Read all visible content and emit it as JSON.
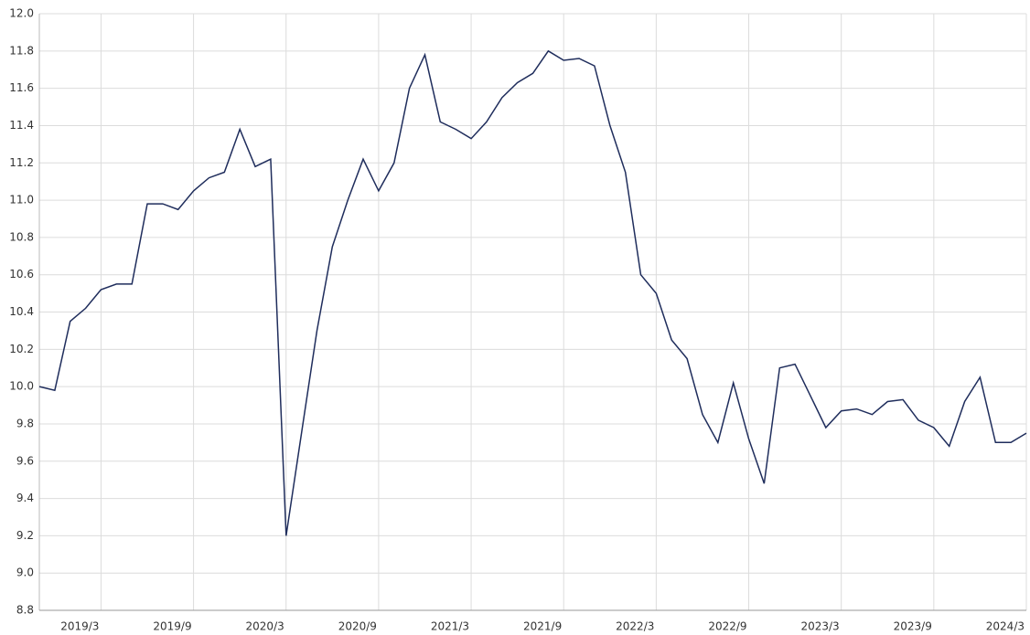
{
  "chart_data": {
    "type": "line",
    "x": [
      "2018/11",
      "2018/12",
      "2019/1",
      "2019/2",
      "2019/3",
      "2019/4",
      "2019/5",
      "2019/6",
      "2019/7",
      "2019/8",
      "2019/9",
      "2019/10",
      "2019/11",
      "2019/12",
      "2020/1",
      "2020/2",
      "2020/3",
      "2020/4",
      "2020/5",
      "2020/6",
      "2020/7",
      "2020/8",
      "2020/9",
      "2020/10",
      "2020/11",
      "2020/12",
      "2021/1",
      "2021/2",
      "2021/3",
      "2021/4",
      "2021/5",
      "2021/6",
      "2021/7",
      "2021/8",
      "2021/9",
      "2021/10",
      "2021/11",
      "2021/12",
      "2022/1",
      "2022/2",
      "2022/3",
      "2022/4",
      "2022/5",
      "2022/6",
      "2022/7",
      "2022/8",
      "2022/9",
      "2022/10",
      "2022/11",
      "2022/12",
      "2023/1",
      "2023/2",
      "2023/3",
      "2023/4",
      "2023/5",
      "2023/6",
      "2023/7",
      "2023/8",
      "2023/9",
      "2023/10",
      "2023/11",
      "2023/12",
      "2024/1",
      "2024/2",
      "2024/3"
    ],
    "series": [
      {
        "color": "#1f2d5c",
        "values": [
          10.0,
          9.98,
          10.35,
          10.42,
          10.52,
          10.55,
          10.55,
          10.98,
          10.98,
          10.95,
          11.05,
          11.12,
          11.15,
          11.38,
          11.18,
          11.22,
          9.2,
          9.75,
          10.3,
          10.75,
          11.0,
          11.22,
          11.05,
          11.2,
          11.6,
          11.78,
          11.42,
          11.38,
          11.33,
          11.42,
          11.55,
          11.63,
          11.68,
          11.8,
          11.75,
          11.76,
          11.72,
          11.4,
          11.15,
          10.6,
          10.5,
          10.25,
          10.15,
          9.85,
          9.7,
          10.02,
          9.72,
          9.48,
          10.1,
          10.12,
          9.95,
          9.78,
          9.87,
          9.88,
          9.85,
          9.92,
          9.93,
          9.82,
          9.78,
          9.68,
          9.92,
          10.05,
          9.7,
          9.7,
          9.75
        ]
      }
    ],
    "xticks": [
      "2019/3",
      "2019/9",
      "2020/3",
      "2020/9",
      "2021/3",
      "2021/9",
      "2022/3",
      "2022/9",
      "2023/3",
      "2023/9",
      "2024/3"
    ],
    "ylim": [
      8.8,
      12.0
    ],
    "yticks": [
      8.8,
      {
        "value": 9,
        "label": "9.0"
      },
      9.2,
      9.4,
      9.6,
      9.8,
      {
        "value": 10,
        "label": "10.0"
      },
      10.2,
      10.4,
      10.6,
      10.8,
      {
        "value": 11,
        "label": "11.0"
      },
      11.2,
      11.4,
      11.6,
      11.8,
      {
        "value": 12,
        "label": "12.0"
      }
    ],
    "grid": true
  }
}
